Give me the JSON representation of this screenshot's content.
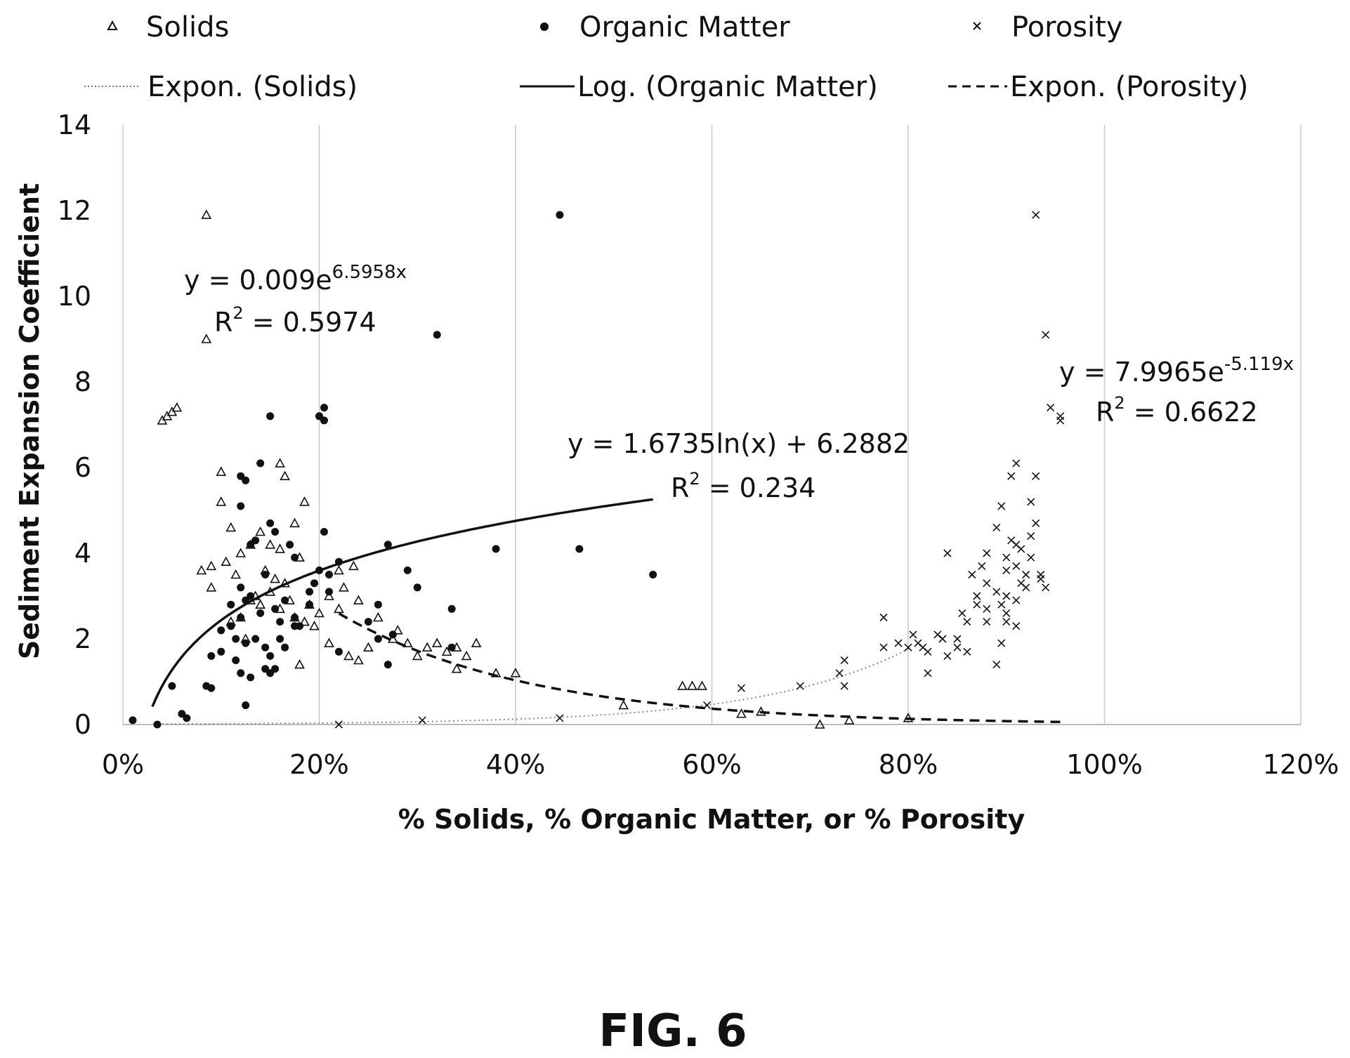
{
  "figure_label": "FIG. 6",
  "chart_data": {
    "type": "scatter",
    "xlabel": "% Solids, % Organic Matter, or % Porosity",
    "ylabel": "Sediment Expansion Coefficient",
    "xlim": [
      0,
      1.2
    ],
    "ylim": [
      0,
      14
    ],
    "x_ticks": [
      "0%",
      "20%",
      "40%",
      "60%",
      "80%",
      "100%",
      "120%"
    ],
    "y_ticks": [
      "0",
      "2",
      "4",
      "6",
      "8",
      "10",
      "12",
      "14"
    ],
    "grid": "vertical",
    "legend": {
      "placement": "top",
      "entries": [
        {
          "label": "Solids",
          "symbol": "triangle"
        },
        {
          "label": "Organic Matter",
          "symbol": "dot"
        },
        {
          "label": "Porosity",
          "symbol": "x"
        },
        {
          "label": "Expon. (Solids)",
          "symbol": "dotted-line"
        },
        {
          "label": "Log. (Organic Matter)",
          "symbol": "solid-line"
        },
        {
          "label": "Expon. (Porosity)",
          "symbol": "dashed-line"
        }
      ]
    },
    "series": [
      {
        "name": "Solids",
        "marker": "triangle",
        "points": [
          [
            0.085,
            11.9
          ],
          [
            0.085,
            9.0
          ],
          [
            0.04,
            7.1
          ],
          [
            0.045,
            7.2
          ],
          [
            0.05,
            7.3
          ],
          [
            0.055,
            7.4
          ],
          [
            0.1,
            5.9
          ],
          [
            0.16,
            6.1
          ],
          [
            0.165,
            5.8
          ],
          [
            0.1,
            5.2
          ],
          [
            0.185,
            5.2
          ],
          [
            0.11,
            4.6
          ],
          [
            0.175,
            4.7
          ],
          [
            0.14,
            4.5
          ],
          [
            0.15,
            4.2
          ],
          [
            0.16,
            4.1
          ],
          [
            0.12,
            4.0
          ],
          [
            0.13,
            4.2
          ],
          [
            0.08,
            3.6
          ],
          [
            0.09,
            3.7
          ],
          [
            0.105,
            3.8
          ],
          [
            0.115,
            3.5
          ],
          [
            0.145,
            3.6
          ],
          [
            0.155,
            3.4
          ],
          [
            0.165,
            3.3
          ],
          [
            0.18,
            3.9
          ],
          [
            0.09,
            3.2
          ],
          [
            0.135,
            3.0
          ],
          [
            0.15,
            3.1
          ],
          [
            0.17,
            2.9
          ],
          [
            0.16,
            2.7
          ],
          [
            0.175,
            2.5
          ],
          [
            0.185,
            2.4
          ],
          [
            0.195,
            2.3
          ],
          [
            0.2,
            2.6
          ],
          [
            0.21,
            3.0
          ],
          [
            0.22,
            3.6
          ],
          [
            0.225,
            3.2
          ],
          [
            0.235,
            3.7
          ],
          [
            0.24,
            2.9
          ],
          [
            0.22,
            2.7
          ],
          [
            0.26,
            2.5
          ],
          [
            0.28,
            2.2
          ],
          [
            0.275,
            2.0
          ],
          [
            0.29,
            1.9
          ],
          [
            0.25,
            1.8
          ],
          [
            0.21,
            1.9
          ],
          [
            0.23,
            1.6
          ],
          [
            0.24,
            1.5
          ],
          [
            0.3,
            1.6
          ],
          [
            0.31,
            1.8
          ],
          [
            0.32,
            1.9
          ],
          [
            0.33,
            1.7
          ],
          [
            0.34,
            1.8
          ],
          [
            0.36,
            1.9
          ],
          [
            0.35,
            1.6
          ],
          [
            0.34,
            1.3
          ],
          [
            0.38,
            1.2
          ],
          [
            0.4,
            1.2
          ],
          [
            0.51,
            0.45
          ],
          [
            0.57,
            0.9
          ],
          [
            0.58,
            0.9
          ],
          [
            0.59,
            0.9
          ],
          [
            0.63,
            0.25
          ],
          [
            0.65,
            0.3
          ],
          [
            0.71,
            0.0
          ],
          [
            0.74,
            0.1
          ],
          [
            0.8,
            0.15
          ],
          [
            0.11,
            2.4
          ],
          [
            0.12,
            2.5
          ],
          [
            0.125,
            2.0
          ],
          [
            0.13,
            2.9
          ],
          [
            0.14,
            2.8
          ],
          [
            0.18,
            1.4
          ],
          [
            0.19,
            2.8
          ]
        ]
      },
      {
        "name": "Organic Matter",
        "marker": "dot",
        "points": [
          [
            0.445,
            11.9
          ],
          [
            0.32,
            9.1
          ],
          [
            0.15,
            7.2
          ],
          [
            0.2,
            7.2
          ],
          [
            0.205,
            7.4
          ],
          [
            0.205,
            7.1
          ],
          [
            0.14,
            6.1
          ],
          [
            0.12,
            5.8
          ],
          [
            0.125,
            5.7
          ],
          [
            0.12,
            5.1
          ],
          [
            0.15,
            4.7
          ],
          [
            0.155,
            4.5
          ],
          [
            0.205,
            4.5
          ],
          [
            0.27,
            4.2
          ],
          [
            0.38,
            4.1
          ],
          [
            0.465,
            4.1
          ],
          [
            0.54,
            3.5
          ],
          [
            0.13,
            4.2
          ],
          [
            0.135,
            4.3
          ],
          [
            0.145,
            3.5
          ],
          [
            0.17,
            4.2
          ],
          [
            0.175,
            3.9
          ],
          [
            0.2,
            3.6
          ],
          [
            0.21,
            3.5
          ],
          [
            0.22,
            3.8
          ],
          [
            0.26,
            2.8
          ],
          [
            0.29,
            3.6
          ],
          [
            0.3,
            3.2
          ],
          [
            0.335,
            2.7
          ],
          [
            0.11,
            2.8
          ],
          [
            0.12,
            3.2
          ],
          [
            0.125,
            2.9
          ],
          [
            0.13,
            3.0
          ],
          [
            0.14,
            2.6
          ],
          [
            0.155,
            2.7
          ],
          [
            0.16,
            2.4
          ],
          [
            0.165,
            2.9
          ],
          [
            0.175,
            2.5
          ],
          [
            0.18,
            2.3
          ],
          [
            0.19,
            2.8
          ],
          [
            0.19,
            3.1
          ],
          [
            0.195,
            3.3
          ],
          [
            0.1,
            2.2
          ],
          [
            0.11,
            2.3
          ],
          [
            0.115,
            2.0
          ],
          [
            0.12,
            2.5
          ],
          [
            0.125,
            1.9
          ],
          [
            0.135,
            2.0
          ],
          [
            0.145,
            1.8
          ],
          [
            0.15,
            1.6
          ],
          [
            0.16,
            2.0
          ],
          [
            0.165,
            1.8
          ],
          [
            0.175,
            2.3
          ],
          [
            0.09,
            1.6
          ],
          [
            0.1,
            1.7
          ],
          [
            0.115,
            1.5
          ],
          [
            0.12,
            1.2
          ],
          [
            0.13,
            1.1
          ],
          [
            0.145,
            1.3
          ],
          [
            0.15,
            1.2
          ],
          [
            0.085,
            0.9
          ],
          [
            0.09,
            0.85
          ],
          [
            0.05,
            0.9
          ],
          [
            0.125,
            0.45
          ],
          [
            0.06,
            0.25
          ],
          [
            0.065,
            0.15
          ],
          [
            0.01,
            0.1
          ],
          [
            0.035,
            0.0
          ],
          [
            0.22,
            1.7
          ],
          [
            0.25,
            2.4
          ],
          [
            0.26,
            2.0
          ],
          [
            0.27,
            1.4
          ],
          [
            0.275,
            2.1
          ],
          [
            0.335,
            1.8
          ],
          [
            0.155,
            1.3
          ],
          [
            0.21,
            3.1
          ]
        ]
      },
      {
        "name": "Porosity",
        "marker": "x",
        "points": [
          [
            0.93,
            11.9
          ],
          [
            0.94,
            9.1
          ],
          [
            0.945,
            7.4
          ],
          [
            0.955,
            7.2
          ],
          [
            0.955,
            7.1
          ],
          [
            0.91,
            6.1
          ],
          [
            0.905,
            5.8
          ],
          [
            0.93,
            5.8
          ],
          [
            0.895,
            5.1
          ],
          [
            0.925,
            5.2
          ],
          [
            0.93,
            4.7
          ],
          [
            0.89,
            4.6
          ],
          [
            0.905,
            4.3
          ],
          [
            0.915,
            4.1
          ],
          [
            0.925,
            4.4
          ],
          [
            0.84,
            4.0
          ],
          [
            0.88,
            4.0
          ],
          [
            0.9,
            3.9
          ],
          [
            0.91,
            4.2
          ],
          [
            0.875,
            3.7
          ],
          [
            0.865,
            3.5
          ],
          [
            0.9,
            3.6
          ],
          [
            0.915,
            3.3
          ],
          [
            0.92,
            3.5
          ],
          [
            0.935,
            3.5
          ],
          [
            0.94,
            3.2
          ],
          [
            0.87,
            3.0
          ],
          [
            0.89,
            3.1
          ],
          [
            0.9,
            3.0
          ],
          [
            0.91,
            2.9
          ],
          [
            0.92,
            3.2
          ],
          [
            0.88,
            2.7
          ],
          [
            0.895,
            2.8
          ],
          [
            0.9,
            2.6
          ],
          [
            0.88,
            2.4
          ],
          [
            0.86,
            2.4
          ],
          [
            0.855,
            2.6
          ],
          [
            0.9,
            2.4
          ],
          [
            0.91,
            2.3
          ],
          [
            0.895,
            1.9
          ],
          [
            0.85,
            2.0
          ],
          [
            0.83,
            2.1
          ],
          [
            0.835,
            2.0
          ],
          [
            0.81,
            1.9
          ],
          [
            0.8,
            1.8
          ],
          [
            0.805,
            2.1
          ],
          [
            0.79,
            1.9
          ],
          [
            0.775,
            1.8
          ],
          [
            0.82,
            1.7
          ],
          [
            0.84,
            1.6
          ],
          [
            0.85,
            1.8
          ],
          [
            0.86,
            1.7
          ],
          [
            0.89,
            1.4
          ],
          [
            0.82,
            1.2
          ],
          [
            0.775,
            2.5
          ],
          [
            0.735,
            1.5
          ],
          [
            0.73,
            1.2
          ],
          [
            0.735,
            0.9
          ],
          [
            0.69,
            0.9
          ],
          [
            0.63,
            0.85
          ],
          [
            0.595,
            0.45
          ],
          [
            0.445,
            0.15
          ],
          [
            0.305,
            0.1
          ],
          [
            0.22,
            0.0
          ],
          [
            0.815,
            1.8
          ],
          [
            0.87,
            2.8
          ],
          [
            0.88,
            3.3
          ],
          [
            0.925,
            3.9
          ],
          [
            0.935,
            3.4
          ],
          [
            0.91,
            3.7
          ]
        ]
      }
    ],
    "trendlines": [
      {
        "name": "Expon. (Solids)",
        "series": "Solids",
        "style": "dotted",
        "model": "exponential",
        "a": 0.009,
        "b": 6.5958,
        "x_range": [
          0.04,
          0.8
        ],
        "equation": "y = 0.009e",
        "equation_exp": "6.5958x",
        "r2_prefix": "R",
        "r2_value": " = 0.5974"
      },
      {
        "name": "Log. (Organic Matter)",
        "series": "Organic Matter",
        "style": "solid",
        "model": "logarithmic",
        "a": 1.6735,
        "b": 6.2882,
        "x_range": [
          0.03,
          0.54
        ],
        "equation": "y = 1.6735ln(x) + 6.2882",
        "r2_prefix": "R",
        "r2_value": " = 0.234"
      },
      {
        "name": "Expon. (Porosity)",
        "series": "Porosity",
        "style": "dashed",
        "model": "exponential",
        "a": 7.9965,
        "b": -5.119,
        "x_range": [
          0.22,
          0.96
        ],
        "equation": "y = 7.9965e",
        "equation_exp": "-5.119x",
        "r2_prefix": "R",
        "r2_value": " = 0.6622"
      }
    ]
  }
}
